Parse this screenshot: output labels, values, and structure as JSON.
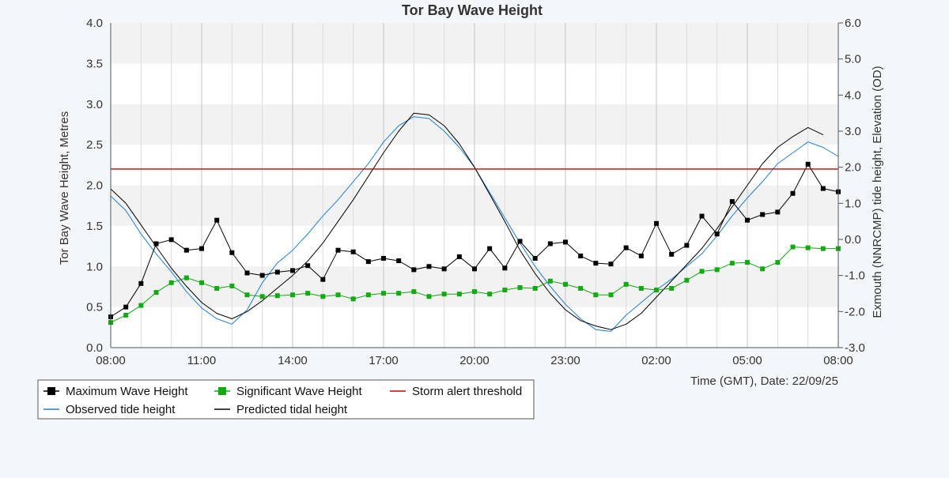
{
  "chart_data": {
    "type": "line",
    "title": "Tor Bay Wave Height",
    "ylabel": "Tor Bay Wave Height, Metres",
    "y2label": "Exmouth (NNRCMP) tide height, Elevation (OD)",
    "xlabel": "Time (GMT), Date: 22/09/25",
    "ylim": [
      0,
      4
    ],
    "y2lim": [
      -3,
      6
    ],
    "xlim": [
      0,
      24
    ],
    "x_unit": "hours since 08:00 on 22/09/25",
    "yticks": [
      "0.0",
      "0.5",
      "1.0",
      "1.5",
      "2.0",
      "2.5",
      "3.0",
      "3.5",
      "4.0"
    ],
    "y2ticks": [
      "-3.0",
      "-2.0",
      "-1.0",
      "0.0",
      "1.0",
      "2.0",
      "3.0",
      "4.0",
      "5.0",
      "6.0"
    ],
    "xticks": [
      {
        "x": 0,
        "label": "08:00"
      },
      {
        "x": 3,
        "label": "11:00"
      },
      {
        "x": 6,
        "label": "14:00"
      },
      {
        "x": 9,
        "label": "17:00"
      },
      {
        "x": 12,
        "label": "20:00"
      },
      {
        "x": 15,
        "label": "23:00"
      },
      {
        "x": 18,
        "label": "02:00"
      },
      {
        "x": 21,
        "label": "05:00"
      },
      {
        "x": 24,
        "label": "08:00"
      }
    ],
    "grid": true,
    "legend_position": "bottom-left",
    "threshold": {
      "name": "Storm alert threshold",
      "value": 2.2,
      "color": "#cc0000"
    },
    "series": [
      {
        "name": "Maximum Wave Height",
        "axis": "left",
        "color": "#000000",
        "marker": "square",
        "x": [
          0,
          0.5,
          1,
          1.5,
          2,
          2.5,
          3,
          3.5,
          4,
          4.5,
          5,
          5.5,
          6,
          6.5,
          7,
          7.5,
          8,
          8.5,
          9,
          9.5,
          10,
          10.5,
          11,
          11.5,
          12,
          12.5,
          13,
          13.5,
          14,
          14.5,
          15,
          15.5,
          16,
          16.5,
          17,
          17.5,
          18,
          18.5,
          19,
          19.5,
          20,
          20.5,
          21,
          21.5,
          22,
          22.5,
          23,
          23.5,
          24
        ],
        "y": [
          0.38,
          0.5,
          0.79,
          1.28,
          1.33,
          1.2,
          1.22,
          1.57,
          1.17,
          0.92,
          0.89,
          0.93,
          0.95,
          1.01,
          0.84,
          1.2,
          1.18,
          1.06,
          1.1,
          1.07,
          0.96,
          1.0,
          0.97,
          1.12,
          0.97,
          1.22,
          0.98,
          1.31,
          1.1,
          1.28,
          1.3,
          1.13,
          1.04,
          1.03,
          1.23,
          1.13,
          1.53,
          1.15,
          1.26,
          1.62,
          1.4,
          1.8,
          1.57,
          1.64,
          1.67,
          1.9,
          2.26,
          1.96,
          1.92
        ]
      },
      {
        "name": "Significant Wave Height",
        "axis": "left",
        "color": "#11aa11",
        "marker": "square",
        "x": [
          0,
          0.5,
          1,
          1.5,
          2,
          2.5,
          3,
          3.5,
          4,
          4.5,
          5,
          5.5,
          6,
          6.5,
          7,
          7.5,
          8,
          8.5,
          9,
          9.5,
          10,
          10.5,
          11,
          11.5,
          12,
          12.5,
          13,
          13.5,
          14,
          14.5,
          15,
          15.5,
          16,
          16.5,
          17,
          17.5,
          18,
          18.5,
          19,
          19.5,
          20,
          20.5,
          21,
          21.5,
          22,
          22.5,
          23,
          23.5,
          24
        ],
        "y": [
          0.31,
          0.4,
          0.52,
          0.68,
          0.8,
          0.86,
          0.8,
          0.73,
          0.76,
          0.65,
          0.63,
          0.64,
          0.65,
          0.67,
          0.63,
          0.65,
          0.6,
          0.65,
          0.67,
          0.67,
          0.69,
          0.63,
          0.66,
          0.66,
          0.69,
          0.66,
          0.71,
          0.74,
          0.73,
          0.82,
          0.78,
          0.73,
          0.65,
          0.65,
          0.78,
          0.73,
          0.71,
          0.73,
          0.83,
          0.94,
          0.96,
          1.04,
          1.05,
          0.97,
          1.05,
          1.24,
          1.23,
          1.22,
          1.22
        ]
      },
      {
        "name": "Observed tide height",
        "axis": "right",
        "color": "#1e7fd6",
        "marker": "none",
        "x": [
          0,
          0.5,
          1,
          1.5,
          2,
          2.5,
          3,
          3.5,
          4,
          4.5,
          5,
          5.5,
          6,
          6.5,
          7,
          7.5,
          8,
          8.5,
          9,
          9.5,
          10,
          10.5,
          11,
          11.5,
          12,
          12.5,
          13,
          13.5,
          14,
          14.5,
          15,
          15.5,
          16,
          16.5,
          17,
          17.5,
          18,
          18.5,
          19,
          19.5,
          20,
          20.5,
          21,
          21.5,
          22,
          22.5,
          23,
          23.5,
          24
        ],
        "y": [
          1.2,
          0.8,
          0.15,
          -0.4,
          -0.9,
          -1.45,
          -1.9,
          -2.2,
          -2.35,
          -1.95,
          -1.2,
          -0.65,
          -0.3,
          0.15,
          0.65,
          1.1,
          1.6,
          2.1,
          2.7,
          3.15,
          3.4,
          3.35,
          3.0,
          2.55,
          2.0,
          1.3,
          0.6,
          -0.1,
          -0.75,
          -1.3,
          -1.8,
          -2.2,
          -2.5,
          -2.55,
          -2.1,
          -1.75,
          -1.4,
          -1.1,
          -0.75,
          -0.4,
          0.1,
          0.65,
          1.15,
          1.6,
          2.1,
          2.4,
          2.7,
          2.55,
          2.3
        ]
      },
      {
        "name": "Predicted tidal height",
        "axis": "right",
        "color": "#000000",
        "marker": "none",
        "x": [
          0,
          0.5,
          1,
          1.5,
          2,
          2.5,
          3,
          3.5,
          4,
          4.5,
          5,
          5.5,
          6,
          6.5,
          7,
          7.5,
          8,
          8.5,
          9,
          9.5,
          10,
          10.5,
          11,
          11.5,
          12,
          12.5,
          13,
          13.5,
          14,
          14.5,
          15,
          15.5,
          16,
          16.5,
          17,
          17.5,
          18,
          18.5,
          19,
          19.5,
          20,
          20.5,
          21,
          21.5,
          22,
          22.5,
          23,
          23.5
        ],
        "y": [
          1.4,
          1.0,
          0.4,
          -0.2,
          -0.8,
          -1.3,
          -1.75,
          -2.05,
          -2.2,
          -2.0,
          -1.7,
          -1.35,
          -1.0,
          -0.6,
          -0.1,
          0.5,
          1.1,
          1.75,
          2.4,
          3.0,
          3.5,
          3.45,
          3.15,
          2.65,
          2.0,
          1.25,
          0.5,
          -0.3,
          -0.95,
          -1.5,
          -1.95,
          -2.25,
          -2.4,
          -2.5,
          -2.35,
          -2.05,
          -1.6,
          -1.15,
          -0.7,
          -0.25,
          0.3,
          0.9,
          1.5,
          2.1,
          2.55,
          2.85,
          3.1,
          2.9
        ]
      }
    ]
  },
  "legend": {
    "items": [
      {
        "label": "Maximum Wave Height",
        "color": "#000000",
        "symbol": "line-square"
      },
      {
        "label": "Significant Wave Height",
        "color": "#11aa11",
        "symbol": "line-square"
      },
      {
        "label": "Storm alert threshold",
        "color": "#cc0000",
        "symbol": "line"
      },
      {
        "label": "Observed tide height",
        "color": "#1e7fd6",
        "symbol": "line"
      },
      {
        "label": "Predicted tidal height",
        "color": "#000000",
        "symbol": "line"
      }
    ]
  },
  "colors": {
    "page_background": "#f4f7fa",
    "band_shaded": "#f2f2f2",
    "band_plain": "#ffffff",
    "gridline": "#dcdcdc"
  }
}
